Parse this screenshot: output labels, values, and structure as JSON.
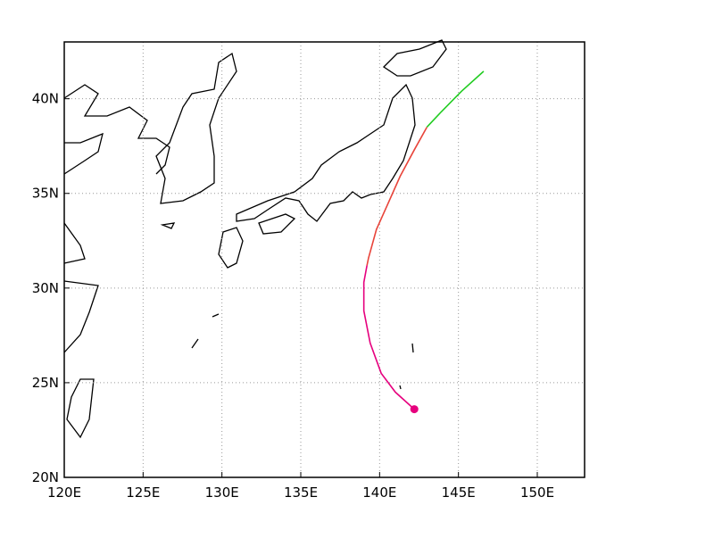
{
  "chart_data": {
    "type": "track",
    "xlim": [
      120,
      153
    ],
    "ylim": [
      20,
      43
    ],
    "xticks": [
      {
        "value": 120,
        "label": "120E"
      },
      {
        "value": 125,
        "label": "125E"
      },
      {
        "value": 130,
        "label": "130E"
      },
      {
        "value": 135,
        "label": "135E"
      },
      {
        "value": 140,
        "label": "140E"
      },
      {
        "value": 145,
        "label": "145E"
      },
      {
        "value": 150,
        "label": "150E"
      }
    ],
    "yticks": [
      {
        "value": 20,
        "label": "20N"
      },
      {
        "value": 25,
        "label": "25N"
      },
      {
        "value": 30,
        "label": "30N"
      },
      {
        "value": 35,
        "label": "35N"
      },
      {
        "value": 40,
        "label": "40N"
      }
    ],
    "grid": true,
    "series": [
      {
        "color": "#e6007e",
        "x": [
          142.2,
          141.0,
          140.1,
          139.4,
          139.0,
          139.0,
          139.2
        ],
        "values": [
          23.6,
          24.5,
          25.5,
          27.1,
          28.8,
          30.3,
          31.2
        ]
      },
      {
        "color": "#e8443a",
        "x": [
          139.2,
          139.3,
          139.8,
          140.5,
          141.3,
          142.2,
          143.0
        ],
        "values": [
          31.2,
          31.6,
          33.1,
          34.4,
          35.9,
          37.3,
          38.5
        ]
      },
      {
        "color": "#22cc22",
        "x": [
          143.0,
          143.9,
          145.2,
          146.6
        ],
        "values": [
          38.5,
          39.3,
          40.4,
          41.45
        ]
      }
    ]
  }
}
